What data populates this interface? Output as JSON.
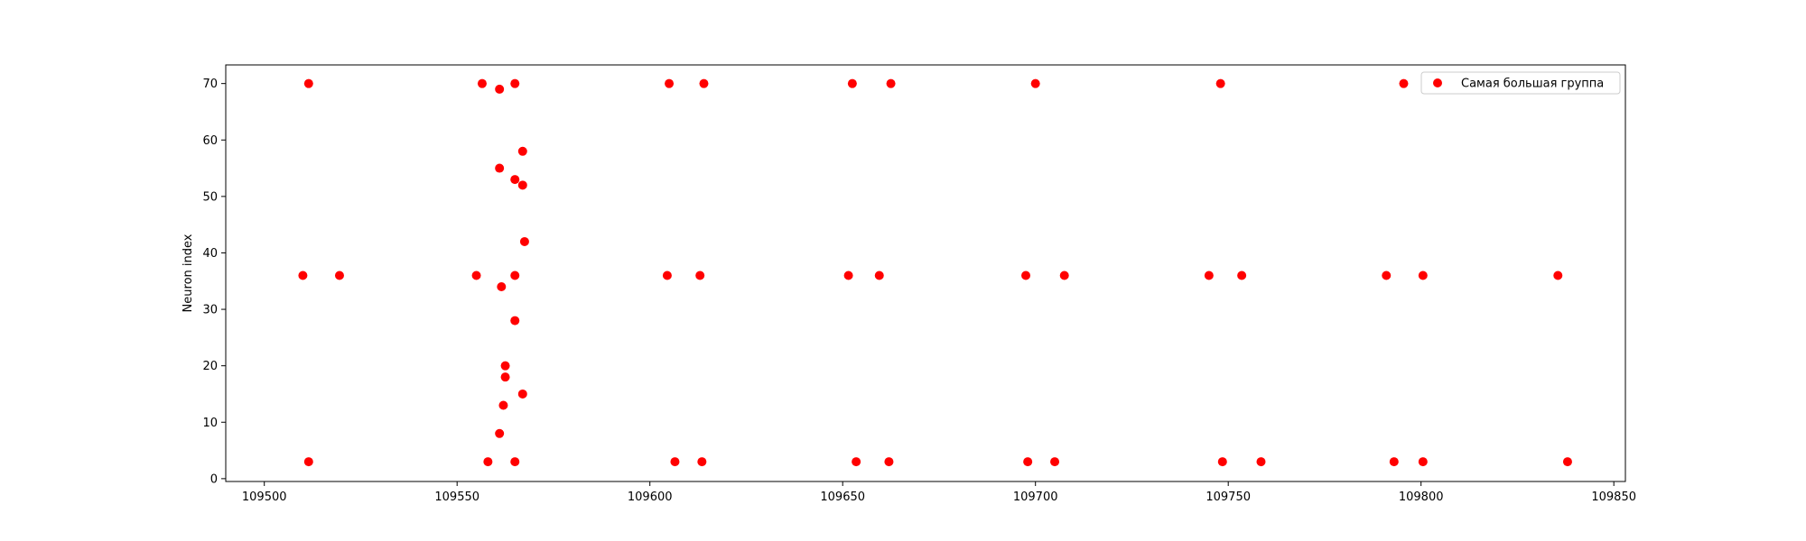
{
  "chart_data": {
    "type": "scatter",
    "title": "",
    "xlabel": "",
    "ylabel": "Neuron index",
    "xlim": [
      109490,
      109853
    ],
    "ylim": [
      -0.5,
      73.3
    ],
    "xticks": [
      109500,
      109550,
      109600,
      109650,
      109700,
      109750,
      109800,
      109850
    ],
    "yticks": [
      0,
      10,
      20,
      30,
      40,
      50,
      60,
      70
    ],
    "grid": false,
    "legend_position": "top-right",
    "series": [
      {
        "name": "Самая большая группа",
        "color": "#ff0000",
        "points": [
          [
            109511.5,
            70
          ],
          [
            109556.5,
            70
          ],
          [
            109561.0,
            69
          ],
          [
            109565.0,
            70
          ],
          [
            109605.0,
            70
          ],
          [
            109614.0,
            70
          ],
          [
            109652.5,
            70
          ],
          [
            109662.5,
            70
          ],
          [
            109700.0,
            70
          ],
          [
            109748.0,
            70
          ],
          [
            109795.5,
            70
          ],
          [
            109567.0,
            58
          ],
          [
            109561.0,
            55
          ],
          [
            109565.0,
            53
          ],
          [
            109567.0,
            52
          ],
          [
            109567.5,
            42
          ],
          [
            109510.0,
            36
          ],
          [
            109519.5,
            36
          ],
          [
            109555.0,
            36
          ],
          [
            109565.0,
            36
          ],
          [
            109561.5,
            34
          ],
          [
            109604.5,
            36
          ],
          [
            109613.0,
            36
          ],
          [
            109651.5,
            36
          ],
          [
            109659.5,
            36
          ],
          [
            109697.5,
            36
          ],
          [
            109707.5,
            36
          ],
          [
            109745.0,
            36
          ],
          [
            109753.5,
            36
          ],
          [
            109791.0,
            36
          ],
          [
            109800.5,
            36
          ],
          [
            109835.5,
            36
          ],
          [
            109565.0,
            28
          ],
          [
            109562.5,
            20
          ],
          [
            109562.5,
            18
          ],
          [
            109567.0,
            15
          ],
          [
            109562.0,
            13
          ],
          [
            109561.0,
            8
          ],
          [
            109511.5,
            3
          ],
          [
            109558.0,
            3
          ],
          [
            109565.0,
            3
          ],
          [
            109606.5,
            3
          ],
          [
            109613.5,
            3
          ],
          [
            109653.5,
            3
          ],
          [
            109662.0,
            3
          ],
          [
            109698.0,
            3
          ],
          [
            109705.0,
            3
          ],
          [
            109748.5,
            3
          ],
          [
            109758.5,
            3
          ],
          [
            109793.0,
            3
          ],
          [
            109800.5,
            3
          ],
          [
            109838.0,
            3
          ]
        ]
      }
    ]
  }
}
